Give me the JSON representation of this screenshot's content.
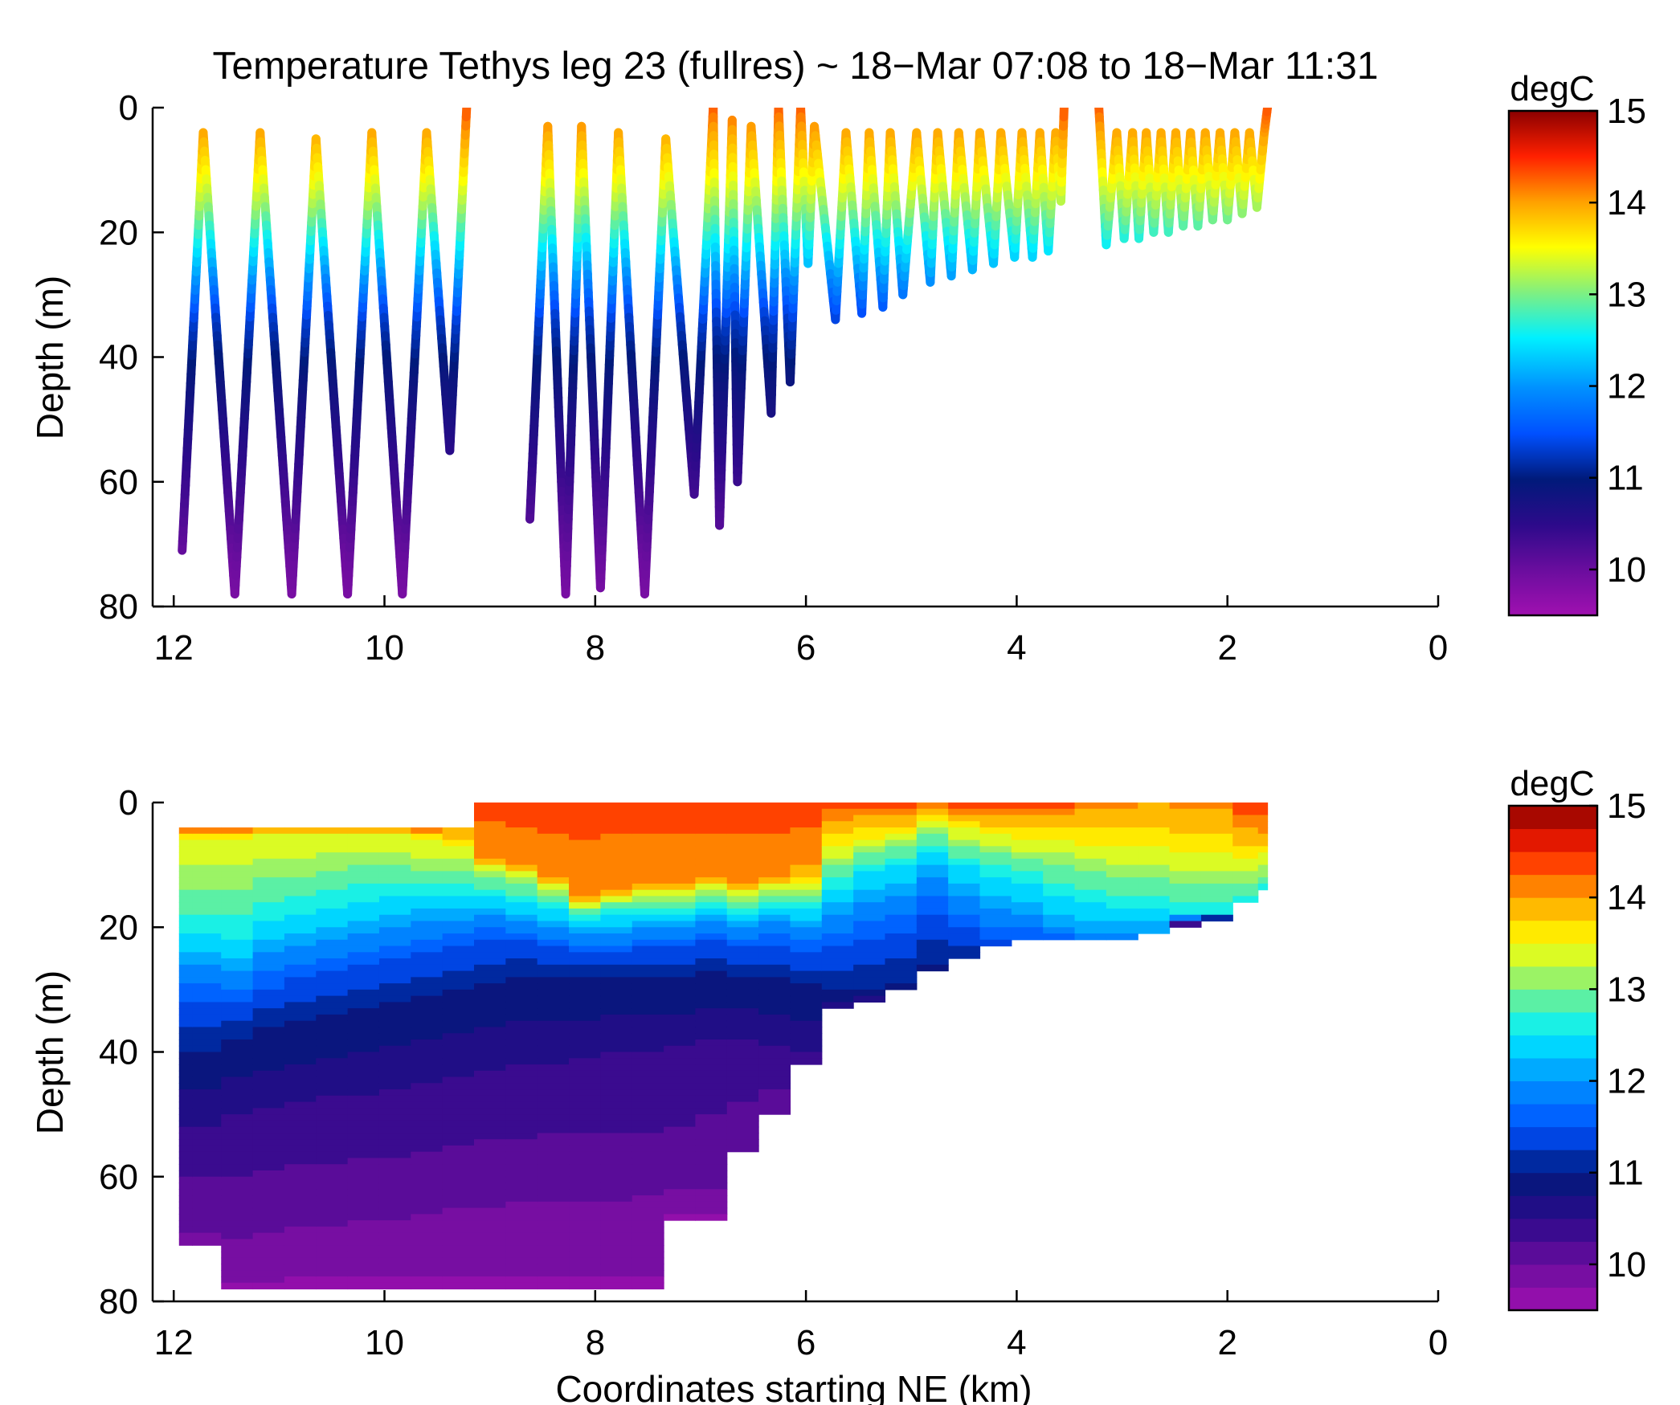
{
  "chart_data": [
    {
      "type": "scatter",
      "title": "Temperature Tethys leg 23 (fullres) ~ 18−Mar 07:08 to 18−Mar 11:31",
      "xlabel": "",
      "ylabel": "Depth (m)",
      "xlim": [
        12.2,
        0
      ],
      "ylim": [
        0,
        80
      ],
      "x_ticks": [
        "12",
        "10",
        "8",
        "6",
        "4",
        "2",
        "0"
      ],
      "y_ticks": [
        "0",
        "20",
        "40",
        "60",
        "80"
      ],
      "grid": false,
      "colorbar": {
        "label": "degC",
        "min": 9.5,
        "max": 15,
        "ticks": [
          "10",
          "11",
          "12",
          "13",
          "14",
          "15"
        ],
        "style": "continuous"
      },
      "yo_profile": [
        {
          "x": 11.92,
          "d": 71
        },
        {
          "x": 11.72,
          "d": 4
        },
        {
          "x": 11.42,
          "d": 78
        },
        {
          "x": 11.18,
          "d": 4
        },
        {
          "x": 10.88,
          "d": 78
        },
        {
          "x": 10.65,
          "d": 5
        },
        {
          "x": 10.35,
          "d": 78
        },
        {
          "x": 10.12,
          "d": 4
        },
        {
          "x": 9.83,
          "d": 78
        },
        {
          "x": 9.6,
          "d": 4
        },
        {
          "x": 9.38,
          "d": 55
        },
        {
          "x": 9.22,
          "d": 0
        },
        {
          "x": 8.62,
          "d": 66
        },
        {
          "x": 8.45,
          "d": 3
        },
        {
          "x": 8.28,
          "d": 78
        },
        {
          "x": 8.13,
          "d": 3
        },
        {
          "x": 7.95,
          "d": 77
        },
        {
          "x": 7.78,
          "d": 4
        },
        {
          "x": 7.53,
          "d": 78
        },
        {
          "x": 7.33,
          "d": 5
        },
        {
          "x": 7.06,
          "d": 62
        },
        {
          "x": 6.88,
          "d": 0
        },
        {
          "x": 6.82,
          "d": 67
        },
        {
          "x": 6.7,
          "d": 2
        },
        {
          "x": 6.65,
          "d": 60
        },
        {
          "x": 6.52,
          "d": 3
        },
        {
          "x": 6.33,
          "d": 49
        },
        {
          "x": 6.26,
          "d": 0
        },
        {
          "x": 6.15,
          "d": 44
        },
        {
          "x": 6.05,
          "d": 0
        },
        {
          "x": 5.98,
          "d": 25
        },
        {
          "x": 5.92,
          "d": 3
        },
        {
          "x": 5.72,
          "d": 34
        },
        {
          "x": 5.62,
          "d": 4
        },
        {
          "x": 5.47,
          "d": 33
        },
        {
          "x": 5.4,
          "d": 4
        },
        {
          "x": 5.27,
          "d": 32
        },
        {
          "x": 5.2,
          "d": 4
        },
        {
          "x": 5.08,
          "d": 30
        },
        {
          "x": 4.95,
          "d": 4
        },
        {
          "x": 4.82,
          "d": 28
        },
        {
          "x": 4.75,
          "d": 4
        },
        {
          "x": 4.62,
          "d": 27
        },
        {
          "x": 4.55,
          "d": 4
        },
        {
          "x": 4.42,
          "d": 26
        },
        {
          "x": 4.35,
          "d": 4
        },
        {
          "x": 4.22,
          "d": 25
        },
        {
          "x": 4.15,
          "d": 4
        },
        {
          "x": 4.02,
          "d": 24
        },
        {
          "x": 3.95,
          "d": 4
        },
        {
          "x": 3.85,
          "d": 24
        },
        {
          "x": 3.78,
          "d": 4
        },
        {
          "x": 3.7,
          "d": 23
        },
        {
          "x": 3.63,
          "d": 4
        },
        {
          "x": 3.58,
          "d": 15
        },
        {
          "x": 3.55,
          "d": 0
        },
        {
          "x": 3.22,
          "d": 0
        },
        {
          "x": 3.15,
          "d": 22
        },
        {
          "x": 3.05,
          "d": 4
        },
        {
          "x": 2.98,
          "d": 21
        },
        {
          "x": 2.9,
          "d": 4
        },
        {
          "x": 2.84,
          "d": 21
        },
        {
          "x": 2.77,
          "d": 4
        },
        {
          "x": 2.7,
          "d": 20
        },
        {
          "x": 2.63,
          "d": 4
        },
        {
          "x": 2.56,
          "d": 20
        },
        {
          "x": 2.49,
          "d": 4
        },
        {
          "x": 2.42,
          "d": 19
        },
        {
          "x": 2.35,
          "d": 4
        },
        {
          "x": 2.28,
          "d": 19
        },
        {
          "x": 2.21,
          "d": 4
        },
        {
          "x": 2.14,
          "d": 18
        },
        {
          "x": 2.07,
          "d": 4
        },
        {
          "x": 2.0,
          "d": 18
        },
        {
          "x": 1.93,
          "d": 4
        },
        {
          "x": 1.86,
          "d": 17
        },
        {
          "x": 1.79,
          "d": 4
        },
        {
          "x": 1.72,
          "d": 16
        },
        {
          "x": 1.65,
          "d": 4
        },
        {
          "x": 1.62,
          "d": 0
        }
      ],
      "yo_breaks_after_index": [
        11,
        55
      ]
    },
    {
      "type": "heatmap",
      "title": "",
      "xlabel": "Coordinates starting NE (km)",
      "ylabel": "Depth (m)",
      "xlim": [
        12.2,
        0
      ],
      "ylim": [
        0,
        80
      ],
      "x_ticks": [
        "12",
        "10",
        "8",
        "6",
        "4",
        "2",
        "0"
      ],
      "y_ticks": [
        "0",
        "20",
        "40",
        "60",
        "80"
      ],
      "grid": false,
      "colorbar": {
        "label": "degC",
        "min": 9.5,
        "max": 15,
        "ticks": [
          "10",
          "11",
          "12",
          "13",
          "14",
          "15"
        ],
        "style": "banded",
        "band_step": 0.25
      },
      "x_nodes": [
        11.95,
        11.7,
        11.4,
        11.1,
        10.8,
        10.5,
        10.2,
        9.9,
        9.6,
        9.3,
        9.0,
        8.7,
        8.4,
        8.1,
        7.8,
        7.5,
        7.2,
        6.9,
        6.6,
        6.3,
        6.0,
        5.7,
        5.4,
        5.1,
        4.8,
        4.5,
        4.2,
        3.9,
        3.6,
        3.3,
        3.0,
        2.7,
        2.4,
        2.1,
        1.8,
        1.62
      ],
      "surface_depth": [
        4,
        4,
        4,
        4,
        4,
        4,
        4,
        4,
        4,
        4,
        0,
        0,
        0,
        0,
        0,
        0,
        0,
        0,
        0,
        0,
        0,
        0,
        0,
        0,
        0,
        0,
        0,
        0,
        0,
        0,
        0,
        0,
        0,
        0,
        0,
        0
      ],
      "bottom_depth": [
        71,
        71,
        78,
        78,
        78,
        78,
        78,
        78,
        78,
        78,
        78,
        78,
        78,
        78,
        78,
        78,
        67,
        67,
        56,
        50,
        42,
        33,
        32,
        30,
        27,
        25,
        23,
        22,
        22,
        22,
        22,
        21,
        20,
        19,
        16,
        14
      ],
      "isotherm_depths": {
        "14": [
          0,
          0,
          0,
          0,
          0,
          0,
          0,
          0,
          2,
          4,
          9,
          10,
          12,
          15,
          14,
          13,
          13,
          12,
          13,
          12,
          10,
          3,
          2,
          2,
          1,
          2,
          2,
          2,
          2,
          1,
          1,
          0,
          1,
          1,
          4,
          5
        ],
        "13.5": [
          6,
          6,
          6,
          5,
          5,
          5,
          5,
          5,
          6,
          7,
          10,
          11,
          13,
          16,
          15,
          14,
          14,
          13,
          14,
          13,
          13,
          7,
          6,
          5,
          3,
          4,
          5,
          6,
          6,
          7,
          7,
          7,
          8,
          8,
          9,
          8
        ],
        "13": [
          14,
          14,
          14,
          12,
          12,
          11,
          10,
          10,
          11,
          11,
          12,
          13,
          15,
          17,
          16,
          16,
          16,
          15,
          16,
          15,
          15,
          10,
          8,
          7,
          5,
          7,
          8,
          9,
          10,
          11,
          12,
          12,
          13,
          13,
          13,
          12
        ],
        "12.5": [
          21,
          21,
          22,
          19,
          18,
          17,
          16,
          15,
          15,
          15,
          15,
          16,
          17,
          19,
          18,
          18,
          18,
          17,
          18,
          17,
          17,
          14,
          11,
          10,
          8,
          10,
          12,
          13,
          15,
          16,
          17,
          17,
          18,
          18,
          16,
          14
        ],
        "12": [
          26,
          26,
          27,
          24,
          23,
          22,
          21,
          20,
          19,
          19,
          18,
          19,
          20,
          21,
          21,
          20,
          20,
          19,
          20,
          19,
          20,
          18,
          16,
          15,
          12,
          15,
          17,
          18,
          20,
          21,
          21,
          21,
          21,
          21,
          17,
          15
        ],
        "11.5": [
          32,
          32,
          32,
          30,
          28,
          27,
          26,
          25,
          24,
          23,
          22,
          22,
          23,
          24,
          24,
          23,
          23,
          22,
          23,
          23,
          24,
          23,
          22,
          21,
          18,
          20,
          22,
          22,
          22,
          22,
          22,
          22,
          21,
          20,
          17,
          15
        ],
        "11": [
          40,
          40,
          38,
          36,
          35,
          34,
          33,
          32,
          31,
          30,
          29,
          28,
          28,
          28,
          28,
          28,
          28,
          27,
          28,
          28,
          29,
          30,
          30,
          29,
          26,
          25,
          23,
          23,
          22,
          22,
          22,
          22,
          21,
          20,
          17,
          15
        ],
        "10.5": [
          52,
          52,
          50,
          49,
          48,
          47,
          47,
          46,
          45,
          44,
          43,
          42,
          42,
          41,
          40,
          40,
          39,
          38,
          38,
          39,
          40,
          33,
          32,
          30,
          27,
          25,
          23,
          22,
          22,
          22,
          22,
          22,
          21,
          20,
          17,
          15
        ],
        "10.2": [
          62,
          62,
          62,
          61,
          60,
          60,
          59,
          59,
          58,
          57,
          56,
          56,
          55,
          55,
          55,
          55,
          54,
          52,
          50,
          47,
          42,
          33,
          32,
          30,
          27,
          25,
          23,
          22,
          22,
          22,
          22,
          22,
          21,
          20,
          17,
          15
        ],
        "10": [
          69,
          69,
          70,
          69,
          68,
          68,
          67,
          67,
          66,
          65,
          65,
          64,
          64,
          64,
          64,
          63,
          62,
          62,
          56,
          50,
          42,
          33,
          32,
          30,
          27,
          25,
          23,
          22,
          22,
          22,
          22,
          22,
          21,
          20,
          17,
          15
        ]
      }
    }
  ]
}
